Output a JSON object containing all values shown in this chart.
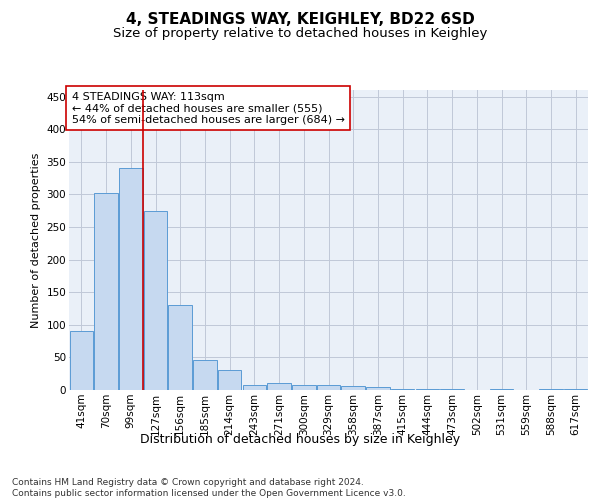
{
  "title": "4, STEADINGS WAY, KEIGHLEY, BD22 6SD",
  "subtitle": "Size of property relative to detached houses in Keighley",
  "xlabel": "Distribution of detached houses by size in Keighley",
  "ylabel": "Number of detached properties",
  "categories": [
    "41sqm",
    "70sqm",
    "99sqm",
    "127sqm",
    "156sqm",
    "185sqm",
    "214sqm",
    "243sqm",
    "271sqm",
    "300sqm",
    "329sqm",
    "358sqm",
    "387sqm",
    "415sqm",
    "444sqm",
    "473sqm",
    "502sqm",
    "531sqm",
    "559sqm",
    "588sqm",
    "617sqm"
  ],
  "values": [
    90,
    302,
    340,
    275,
    130,
    46,
    30,
    8,
    10,
    8,
    8,
    6,
    4,
    2,
    2,
    2,
    0,
    2,
    0,
    2,
    2
  ],
  "bar_color": "#c6d9f0",
  "bar_edge_color": "#5b9bd5",
  "grid_color": "#c0c8d8",
  "background_color": "#eaf0f8",
  "vline_color": "#cc0000",
  "annotation_text": "4 STEADINGS WAY: 113sqm\n← 44% of detached houses are smaller (555)\n54% of semi-detached houses are larger (684) →",
  "annotation_box_color": "#ffffff",
  "annotation_box_edge": "#cc0000",
  "ylim": [
    0,
    460
  ],
  "yticks": [
    0,
    50,
    100,
    150,
    200,
    250,
    300,
    350,
    400,
    450
  ],
  "footer": "Contains HM Land Registry data © Crown copyright and database right 2024.\nContains public sector information licensed under the Open Government Licence v3.0.",
  "title_fontsize": 11,
  "subtitle_fontsize": 9.5,
  "xlabel_fontsize": 9,
  "ylabel_fontsize": 8,
  "tick_fontsize": 7.5,
  "annotation_fontsize": 8,
  "footer_fontsize": 6.5
}
